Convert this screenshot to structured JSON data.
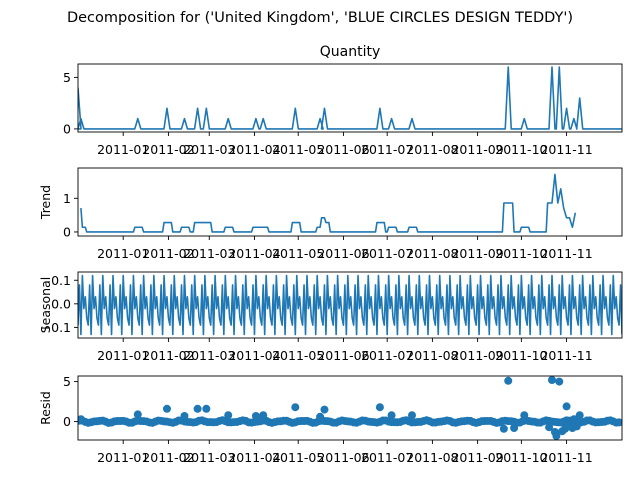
{
  "figure": {
    "title": "Decomposition for ('United Kingdom', 'BLUE CIRCLES DESIGN TEDDY')"
  },
  "chart_data": [
    {
      "type": "line",
      "panel": "observed",
      "title": "Quantity",
      "ylabel": "",
      "ylim": [
        -0.3,
        6.3
      ],
      "yticks": [
        0,
        5
      ],
      "yticklabels": [
        "0",
        "5"
      ],
      "xlim": [
        "2010-12-01",
        "2011-12-09"
      ],
      "xticks": [
        "2011-01-01",
        "2011-02-01",
        "2011-03-01",
        "2011-04-01",
        "2011-05-01",
        "2011-06-01",
        "2011-07-01",
        "2011-08-01",
        "2011-09-01",
        "2011-10-01",
        "2011-11-01"
      ],
      "xticklabels": [
        "2011-01",
        "2011-02",
        "2011-03",
        "2011-04",
        "2011-05",
        "2011-06",
        "2011-07",
        "2011-08",
        "2011-09",
        "2011-10",
        "2011-11"
      ],
      "color": "#1f77b4",
      "baseline": 0,
      "spikes": [
        {
          "date": "2010-12-01",
          "value": 4
        },
        {
          "date": "2010-12-03",
          "value": 1
        },
        {
          "date": "2011-01-11",
          "value": 1
        },
        {
          "date": "2011-01-31",
          "value": 2
        },
        {
          "date": "2011-02-12",
          "value": 1
        },
        {
          "date": "2011-02-21",
          "value": 2
        },
        {
          "date": "2011-02-27",
          "value": 2
        },
        {
          "date": "2011-03-14",
          "value": 1
        },
        {
          "date": "2011-04-02",
          "value": 1
        },
        {
          "date": "2011-04-07",
          "value": 1
        },
        {
          "date": "2011-04-29",
          "value": 2
        },
        {
          "date": "2011-05-16",
          "value": 1
        },
        {
          "date": "2011-05-19",
          "value": 2
        },
        {
          "date": "2011-06-26",
          "value": 2
        },
        {
          "date": "2011-07-04",
          "value": 1
        },
        {
          "date": "2011-07-18",
          "value": 1
        },
        {
          "date": "2011-09-22",
          "value": 6
        },
        {
          "date": "2011-10-03",
          "value": 1
        },
        {
          "date": "2011-10-22",
          "value": 6
        },
        {
          "date": "2011-10-27",
          "value": 6
        },
        {
          "date": "2011-11-01",
          "value": 2
        },
        {
          "date": "2011-11-06",
          "value": 1
        },
        {
          "date": "2011-11-10",
          "value": 3
        }
      ]
    },
    {
      "type": "line",
      "panel": "trend",
      "title": "",
      "ylabel": "Trend",
      "ylim": [
        -0.12,
        1.9
      ],
      "yticks": [
        0,
        1
      ],
      "yticklabels": [
        "0",
        "1"
      ],
      "xlim": [
        "2010-12-01",
        "2011-12-09"
      ],
      "color": "#1f77b4",
      "points": [
        [
          "2010-12-03",
          0.71
        ],
        [
          "2010-12-04",
          0.14
        ],
        [
          "2010-12-06",
          0.14
        ],
        [
          "2010-12-07",
          0
        ],
        [
          "2011-01-08",
          0
        ],
        [
          "2011-01-09",
          0.14
        ],
        [
          "2011-01-14",
          0.14
        ],
        [
          "2011-01-15",
          0
        ],
        [
          "2011-01-28",
          0
        ],
        [
          "2011-01-29",
          0.28
        ],
        [
          "2011-02-03",
          0.28
        ],
        [
          "2011-02-04",
          0
        ],
        [
          "2011-02-09",
          0
        ],
        [
          "2011-02-10",
          0.14
        ],
        [
          "2011-02-15",
          0.14
        ],
        [
          "2011-02-16",
          0
        ],
        [
          "2011-02-18",
          0
        ],
        [
          "2011-02-19",
          0.28
        ],
        [
          "2011-03-02",
          0.28
        ],
        [
          "2011-03-03",
          0
        ],
        [
          "2011-03-11",
          0
        ],
        [
          "2011-03-12",
          0.14
        ],
        [
          "2011-03-17",
          0.14
        ],
        [
          "2011-03-18",
          0
        ],
        [
          "2011-03-30",
          0
        ],
        [
          "2011-03-31",
          0.14
        ],
        [
          "2011-04-10",
          0.14
        ],
        [
          "2011-04-11",
          0
        ],
        [
          "2011-04-26",
          0
        ],
        [
          "2011-04-27",
          0.28
        ],
        [
          "2011-05-02",
          0.28
        ],
        [
          "2011-05-03",
          0
        ],
        [
          "2011-05-13",
          0
        ],
        [
          "2011-05-14",
          0.14
        ],
        [
          "2011-05-16",
          0.14
        ],
        [
          "2011-05-17",
          0.42
        ],
        [
          "2011-05-19",
          0.42
        ],
        [
          "2011-05-20",
          0.28
        ],
        [
          "2011-05-22",
          0.28
        ],
        [
          "2011-05-23",
          0
        ],
        [
          "2011-06-23",
          0
        ],
        [
          "2011-06-24",
          0.28
        ],
        [
          "2011-06-29",
          0.28
        ],
        [
          "2011-06-30",
          0
        ],
        [
          "2011-07-01",
          0
        ],
        [
          "2011-07-02",
          0.14
        ],
        [
          "2011-07-07",
          0.14
        ],
        [
          "2011-07-08",
          0
        ],
        [
          "2011-07-15",
          0
        ],
        [
          "2011-07-16",
          0.14
        ],
        [
          "2011-07-21",
          0.14
        ],
        [
          "2011-07-22",
          0
        ],
        [
          "2011-09-18",
          0
        ],
        [
          "2011-09-19",
          0.86
        ],
        [
          "2011-09-25",
          0.86
        ],
        [
          "2011-09-26",
          0
        ],
        [
          "2011-09-30",
          0
        ],
        [
          "2011-10-01",
          0.14
        ],
        [
          "2011-10-06",
          0.14
        ],
        [
          "2011-10-07",
          0
        ],
        [
          "2011-10-18",
          0
        ],
        [
          "2011-10-19",
          0.86
        ],
        [
          "2011-10-22",
          0.86
        ],
        [
          "2011-10-24",
          1.71
        ],
        [
          "2011-10-26",
          0.86
        ],
        [
          "2011-10-28",
          1.28
        ],
        [
          "2011-10-30",
          0.71
        ],
        [
          "2011-11-01",
          0.42
        ],
        [
          "2011-11-03",
          0.42
        ],
        [
          "2011-11-05",
          0.14
        ],
        [
          "2011-11-07",
          0.57
        ]
      ]
    },
    {
      "type": "line",
      "panel": "seasonal",
      "title": "",
      "ylabel": "Seasonal",
      "ylim": [
        -0.145,
        0.135
      ],
      "yticks": [
        -0.1,
        0.0,
        0.1
      ],
      "yticklabels": [
        "−0.1",
        "0.0",
        "0.1"
      ],
      "xlim": [
        "2010-12-01",
        "2011-12-09"
      ],
      "color": "#1f77b4",
      "start": "2010-12-01",
      "end": "2011-12-09",
      "period_days": 7,
      "pattern": [
        -0.09,
        0.08,
        -0.13,
        0.12,
        -0.02,
        0.03,
        -0.06
      ]
    },
    {
      "type": "scatter",
      "panel": "resid",
      "title": "",
      "ylabel": "Resid",
      "ylim": [
        -2.3,
        5.7
      ],
      "yticks": [
        0,
        5
      ],
      "yticklabels": [
        "0",
        "5"
      ],
      "xlim": [
        "2010-12-01",
        "2011-12-09"
      ],
      "color": "#1f77b4",
      "baseline": 0,
      "points": [
        [
          "2010-12-03",
          0.3
        ],
        [
          "2011-01-11",
          0.9
        ],
        [
          "2011-01-31",
          1.6
        ],
        [
          "2011-02-12",
          0.7
        ],
        [
          "2011-02-21",
          1.6
        ],
        [
          "2011-02-27",
          1.6
        ],
        [
          "2011-03-14",
          0.8
        ],
        [
          "2011-04-02",
          0.7
        ],
        [
          "2011-04-07",
          0.8
        ],
        [
          "2011-04-29",
          1.8
        ],
        [
          "2011-05-16",
          0.6
        ],
        [
          "2011-05-19",
          1.5
        ],
        [
          "2011-06-26",
          1.8
        ],
        [
          "2011-07-04",
          0.8
        ],
        [
          "2011-07-18",
          0.8
        ],
        [
          "2011-09-22",
          5.1
        ],
        [
          "2011-09-19",
          -0.9
        ],
        [
          "2011-09-26",
          -0.8
        ],
        [
          "2011-10-03",
          0.8
        ],
        [
          "2011-10-22",
          5.2
        ],
        [
          "2011-10-27",
          5.0
        ],
        [
          "2011-10-24",
          -1.3
        ],
        [
          "2011-10-25",
          -1.8
        ],
        [
          "2011-10-29",
          -1.2
        ],
        [
          "2011-11-01",
          1.9
        ],
        [
          "2011-11-03",
          -0.5
        ],
        [
          "2011-11-06",
          0.3
        ],
        [
          "2011-11-10",
          0.8
        ],
        [
          "2011-11-05",
          -0.8
        ],
        [
          "2011-10-20",
          -0.7
        ],
        [
          "2011-10-31",
          -0.9
        ],
        [
          "2011-11-08",
          -0.6
        ]
      ]
    }
  ]
}
